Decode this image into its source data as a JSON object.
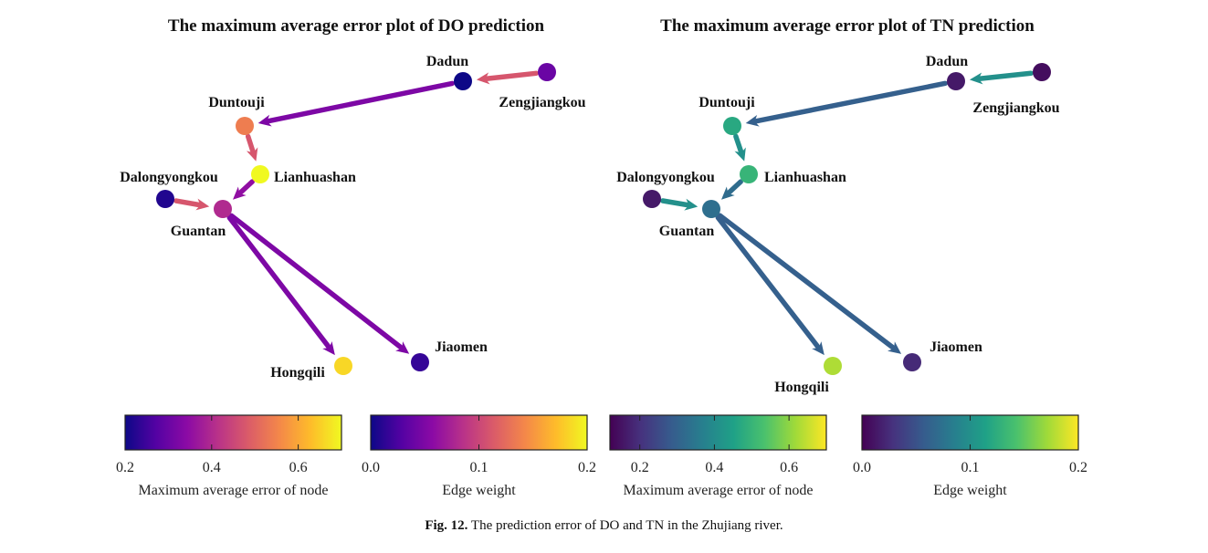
{
  "caption": {
    "label": "Fig. 12.",
    "text": "The prediction error of DO and TN in the Zhujiang river."
  },
  "chart_data": [
    {
      "type": "network",
      "title": "The maximum average error plot of DO prediction",
      "palette": "plasma",
      "nodes": [
        {
          "id": "Zengjiangkou",
          "label": "Zengjiangkou",
          "error": 0.3
        },
        {
          "id": "Dadun",
          "label": "Dadun",
          "error": 0.2
        },
        {
          "id": "Duntouji",
          "label": "Duntouji",
          "error": 0.54
        },
        {
          "id": "Lianhuashan",
          "label": "Lianhuashan",
          "error": 0.7
        },
        {
          "id": "Dalongyongkou",
          "label": "Dalongyongkou",
          "error": 0.22
        },
        {
          "id": "Guantan",
          "label": "Guantan",
          "error": 0.4
        },
        {
          "id": "Hongqili",
          "label": "Hongqili",
          "error": 0.66
        },
        {
          "id": "Jiaomen",
          "label": "Jiaomen",
          "error": 0.24
        }
      ],
      "edges": [
        {
          "from": "Zengjiangkou",
          "to": "Dadun",
          "weight": 0.11
        },
        {
          "from": "Dadun",
          "to": "Duntouji",
          "weight": 0.05
        },
        {
          "from": "Duntouji",
          "to": "Lianhuashan",
          "weight": 0.11
        },
        {
          "from": "Lianhuashan",
          "to": "Guantan",
          "weight": 0.06
        },
        {
          "from": "Dalongyongkou",
          "to": "Guantan",
          "weight": 0.11
        },
        {
          "from": "Guantan",
          "to": "Hongqili",
          "weight": 0.05
        },
        {
          "from": "Guantan",
          "to": "Jiaomen",
          "weight": 0.05
        }
      ],
      "node_colorbar": {
        "label": "Maximum average error of node",
        "ticks": [
          "0.2",
          "0.4",
          "0.6"
        ],
        "range": [
          0.2,
          0.7
        ]
      },
      "edge_colorbar": {
        "label": "Edge weight",
        "ticks": [
          "0.0",
          "0.1",
          "0.2"
        ],
        "range": [
          0.0,
          0.2
        ]
      }
    },
    {
      "type": "network",
      "title": "The maximum average error plot of TN prediction",
      "palette": "viridis",
      "nodes": [
        {
          "id": "Zengjiangkou",
          "label": "Zengjiangkou",
          "error": 0.14
        },
        {
          "id": "Dadun",
          "label": "Dadun",
          "error": 0.16
        },
        {
          "id": "Duntouji",
          "label": "Duntouji",
          "error": 0.47
        },
        {
          "id": "Lianhuashan",
          "label": "Lianhuashan",
          "error": 0.5
        },
        {
          "id": "Dalongyongkou",
          "label": "Dalongyongkou",
          "error": 0.16
        },
        {
          "id": "Guantan",
          "label": "Guantan",
          "error": 0.33
        },
        {
          "id": "Hongqili",
          "label": "Hongqili",
          "error": 0.63
        },
        {
          "id": "Jiaomen",
          "label": "Jiaomen",
          "error": 0.19
        }
      ],
      "edges": [
        {
          "from": "Zengjiangkou",
          "to": "Dadun",
          "weight": 0.1
        },
        {
          "from": "Dadun",
          "to": "Duntouji",
          "weight": 0.06
        },
        {
          "from": "Duntouji",
          "to": "Lianhuashan",
          "weight": 0.1
        },
        {
          "from": "Lianhuashan",
          "to": "Guantan",
          "weight": 0.07
        },
        {
          "from": "Dalongyongkou",
          "to": "Guantan",
          "weight": 0.1
        },
        {
          "from": "Guantan",
          "to": "Hongqili",
          "weight": 0.06
        },
        {
          "from": "Guantan",
          "to": "Jiaomen",
          "weight": 0.06
        }
      ],
      "node_colorbar": {
        "label": "Maximum average error of node",
        "ticks": [
          "0.2",
          "0.4",
          "0.6"
        ],
        "range": [
          0.12,
          0.7
        ]
      },
      "edge_colorbar": {
        "label": "Edge weight",
        "ticks": [
          "0.0",
          "0.1",
          "0.2"
        ],
        "range": [
          0.0,
          0.2
        ]
      }
    }
  ]
}
